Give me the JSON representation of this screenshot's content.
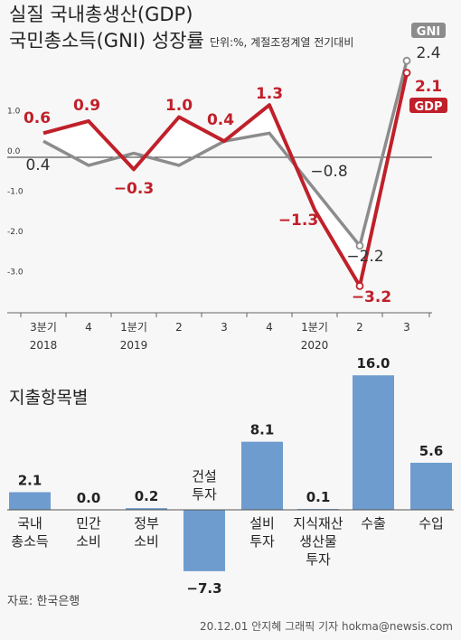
{
  "title_line1": "실질 국내총생산(GDP)",
  "title_line2": "국민총소득(GNI) 성장률",
  "unit": "단위:%, 계절조정계열 전기대비",
  "source": "자료: 한국은행",
  "credit": "20.12.01 안지혜 그래픽 기자 hokma@newsis.com",
  "colors": {
    "gdp": "#c0202a",
    "gni": "#8c8c8c",
    "bar": "#6e9ccf"
  },
  "chart_data": [
    {
      "type": "line",
      "x": [
        "3분기",
        "4",
        "1분기",
        "2",
        "3",
        "4",
        "1분기",
        "2",
        "3"
      ],
      "years": [
        {
          "label": "2018",
          "index": 0
        },
        {
          "label": "2019",
          "index": 2
        },
        {
          "label": "2020",
          "index": 6
        }
      ],
      "yticks": [
        "1.0",
        "0.0",
        "-1.0",
        "-2.0",
        "-3.0"
      ],
      "ylim": [
        -4.2,
        2.7
      ],
      "series": [
        {
          "name": "GDP",
          "values": [
            0.6,
            0.9,
            -0.3,
            1.0,
            0.4,
            1.3,
            -1.3,
            -3.2,
            2.1
          ],
          "labels": [
            "0.6",
            "0.9",
            "−0.3",
            "1.0",
            "0.4",
            "1.3",
            "−1.3",
            "−3.2",
            "2.1"
          ]
        },
        {
          "name": "GNI",
          "values": [
            0.4,
            -0.2,
            0.1,
            -0.2,
            0.4,
            0.6,
            -0.8,
            -2.2,
            2.4
          ],
          "labels": [
            "0.4",
            "",
            "",
            "",
            "",
            "",
            "−0.8",
            "−2.2",
            "2.4"
          ]
        }
      ]
    },
    {
      "type": "bar",
      "title": "지출항목별",
      "categories": [
        [
          "국내",
          "총소득"
        ],
        [
          "민간",
          "소비"
        ],
        [
          "정부",
          "소비"
        ],
        [
          "건설",
          "투자"
        ],
        [
          "설비",
          "투자"
        ],
        [
          "지식재산",
          "생산물",
          "투자"
        ],
        [
          "수출"
        ],
        [
          "수입"
        ]
      ],
      "values": [
        2.1,
        0.0,
        0.2,
        -7.3,
        8.1,
        0.1,
        16.0,
        5.6
      ],
      "labels": [
        "2.1",
        "0.0",
        "0.2",
        "−7.3",
        "8.1",
        "0.1",
        "16.0",
        "5.6"
      ]
    }
  ]
}
